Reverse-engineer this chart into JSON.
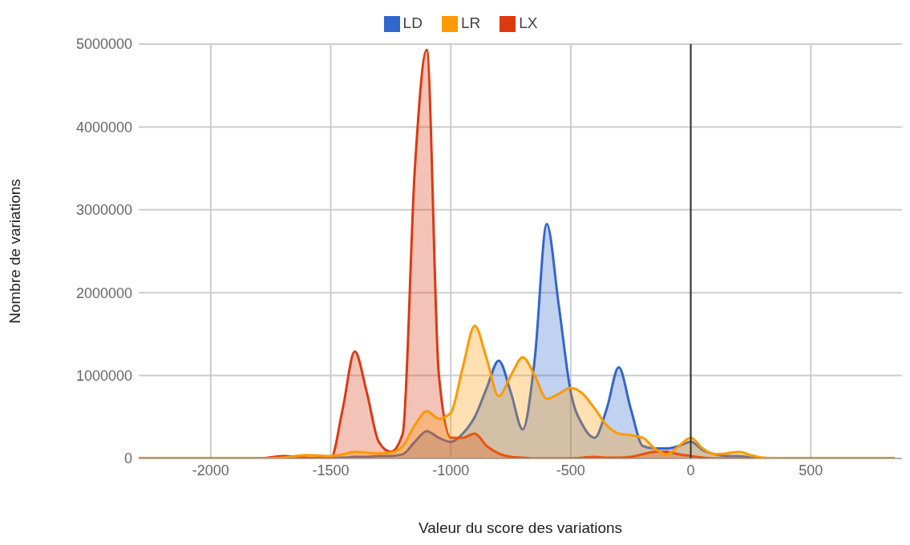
{
  "chart_data": {
    "type": "area",
    "xlabel": "Valeur du score des variations",
    "ylabel": "Nombre de variations",
    "x": [
      -2300,
      -2000,
      -1800,
      -1700,
      -1600,
      -1500,
      -1450,
      -1400,
      -1350,
      -1300,
      -1250,
      -1200,
      -1150,
      -1100,
      -1050,
      -1000,
      -950,
      -900,
      -850,
      -800,
      -750,
      -700,
      -650,
      -600,
      -550,
      -500,
      -450,
      -400,
      -350,
      -300,
      -250,
      -200,
      -150,
      -100,
      -50,
      0,
      50,
      100,
      150,
      200,
      250,
      300,
      400,
      600,
      850
    ],
    "series": [
      {
        "name": "LD",
        "color": "#3366cc",
        "values": [
          0,
          0,
          0,
          0,
          0,
          10000,
          10000,
          20000,
          20000,
          30000,
          30000,
          50000,
          200000,
          330000,
          250000,
          200000,
          300000,
          500000,
          850000,
          1180000,
          800000,
          350000,
          1200000,
          2830000,
          1850000,
          800000,
          400000,
          250000,
          600000,
          1100000,
          600000,
          150000,
          120000,
          120000,
          150000,
          200000,
          100000,
          50000,
          30000,
          30000,
          10000,
          0,
          0,
          0,
          0
        ]
      },
      {
        "name": "LX",
        "color": "#dc3912",
        "values": [
          0,
          0,
          0,
          30000,
          10000,
          0,
          600000,
          1290000,
          800000,
          200000,
          80000,
          300000,
          3470000,
          4930000,
          1030000,
          250000,
          250000,
          300000,
          150000,
          60000,
          20000,
          10000,
          0,
          0,
          0,
          0,
          10000,
          20000,
          10000,
          10000,
          20000,
          50000,
          80000,
          80000,
          50000,
          30000,
          10000,
          0,
          0,
          0,
          0,
          0,
          0,
          0,
          0
        ]
      },
      {
        "name": "LR",
        "color": "#ff9900",
        "values": [
          0,
          0,
          0,
          10000,
          40000,
          30000,
          50000,
          80000,
          70000,
          60000,
          70000,
          150000,
          400000,
          570000,
          480000,
          550000,
          1100000,
          1600000,
          1200000,
          750000,
          1000000,
          1220000,
          1000000,
          720000,
          780000,
          850000,
          780000,
          600000,
          400000,
          300000,
          280000,
          250000,
          120000,
          50000,
          150000,
          250000,
          120000,
          50000,
          60000,
          80000,
          40000,
          10000,
          0,
          0,
          0
        ]
      }
    ],
    "xlim": [
      -2300,
      880
    ],
    "xticks": [
      -2000,
      -1500,
      -1000,
      -500,
      0,
      500
    ],
    "ylim": [
      0,
      5000000
    ],
    "yticks": [
      0,
      1000000,
      2000000,
      3000000,
      4000000,
      5000000
    ],
    "grid": true,
    "legend": "top",
    "ref_lines": [
      {
        "axis": "x",
        "value": 0,
        "color": "#333333"
      }
    ]
  }
}
